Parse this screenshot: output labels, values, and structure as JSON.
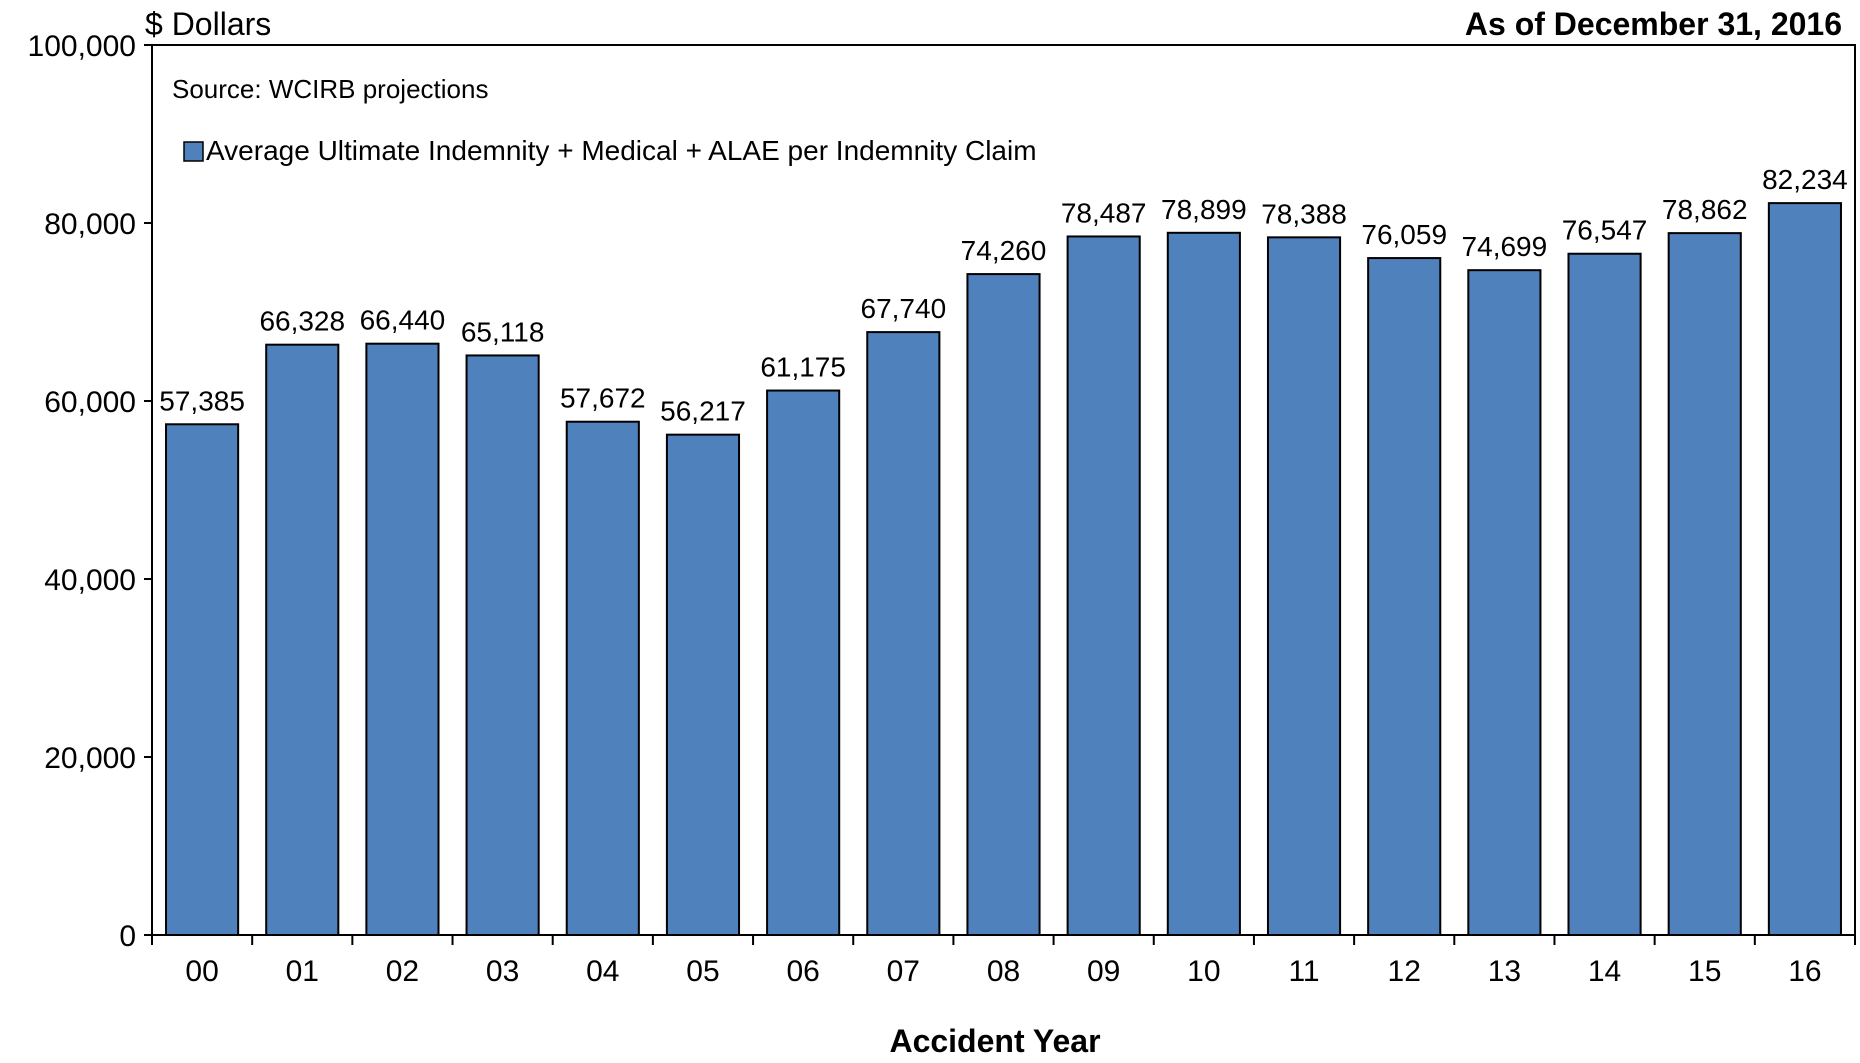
{
  "header": {
    "unit_label": "$ Dollars",
    "as_of": "As of December 31, 2016"
  },
  "note": {
    "source": "Source: WCIRB projections"
  },
  "chart_data": {
    "type": "bar",
    "categories": [
      "00",
      "01",
      "02",
      "03",
      "04",
      "05",
      "06",
      "07",
      "08",
      "09",
      "10",
      "11",
      "12",
      "13",
      "14",
      "15",
      "16"
    ],
    "series": [
      {
        "name": "Average Ultimate Indemnity + Medical + ALAE per Indemnity Claim",
        "values": [
          57385,
          66328,
          66440,
          65118,
          57672,
          56217,
          61175,
          67740,
          74260,
          78487,
          78899,
          78388,
          76059,
          74699,
          76547,
          78862,
          82234
        ],
        "labels": [
          "57,385",
          "66,328",
          "66,440",
          "65,118",
          "57,672",
          "56,217",
          "61,175",
          "67,740",
          "74,260",
          "78,487",
          "78,899",
          "78,388",
          "76,059",
          "74,699",
          "76,547",
          "78,862",
          "82,234"
        ],
        "color": "#4f81bd"
      }
    ],
    "xlabel": "Accident Year",
    "ylabel": "$ Dollars",
    "ylim": [
      0,
      100000
    ],
    "yticks": [
      0,
      20000,
      40000,
      60000,
      80000,
      100000
    ],
    "ytick_labels": [
      "0",
      "20,000",
      "40,000",
      "60,000",
      "80,000",
      "100,000"
    ],
    "grid": false,
    "legend": "top-left"
  }
}
